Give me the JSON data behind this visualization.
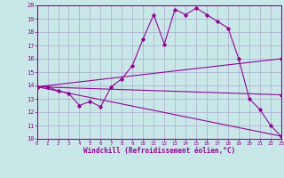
{
  "xlabel": "Windchill (Refroidissement éolien,°C)",
  "background_color": "#c8e8e8",
  "grid_color": "#aaaacc",
  "line_color": "#990099",
  "xlim": [
    0,
    23
  ],
  "ylim": [
    10,
    20
  ],
  "xticks": [
    0,
    1,
    2,
    3,
    4,
    5,
    6,
    7,
    8,
    9,
    10,
    11,
    12,
    13,
    14,
    15,
    16,
    17,
    18,
    19,
    20,
    21,
    22,
    23
  ],
  "yticks": [
    10,
    11,
    12,
    13,
    14,
    15,
    16,
    17,
    18,
    19,
    20
  ],
  "series": [
    {
      "x": [
        0,
        1,
        2,
        3,
        4,
        5,
        6,
        7,
        8,
        9,
        10,
        11,
        12,
        13,
        14,
        15,
        16,
        17,
        18,
        19,
        20,
        21,
        22,
        23
      ],
      "y": [
        13.9,
        13.9,
        13.6,
        13.4,
        12.5,
        12.8,
        12.4,
        13.9,
        14.5,
        15.5,
        17.5,
        19.3,
        17.1,
        19.7,
        19.3,
        19.8,
        19.3,
        18.8,
        18.3,
        16.0,
        13.0,
        12.2,
        11.0,
        10.2
      ]
    },
    {
      "x": [
        0,
        23
      ],
      "y": [
        13.9,
        16.0
      ]
    },
    {
      "x": [
        0,
        23
      ],
      "y": [
        13.9,
        10.2
      ]
    },
    {
      "x": [
        0,
        23
      ],
      "y": [
        13.9,
        13.3
      ]
    }
  ]
}
